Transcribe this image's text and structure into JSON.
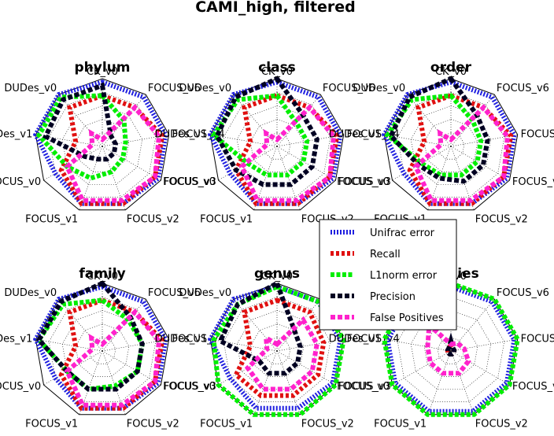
{
  "title": "CAMI_high, filtered",
  "chart_data": {
    "type": "radar",
    "axes": [
      "CK_v0",
      "FOCUS_v6",
      "FOCUS_v4",
      "FOCUS_v3",
      "FOCUS_v2",
      "FOCUS_v1",
      "FOCUS_v0",
      "DUDes_v1",
      "DUDes_v0"
    ],
    "grid": true,
    "legend_position": "center-right",
    "series_styles": [
      {
        "name": "Unifrac error",
        "color": "#2020e0",
        "dash": "2,2"
      },
      {
        "name": "Recall",
        "color": "#e01010",
        "dash": "4,3"
      },
      {
        "name": "L1norm error",
        "color": "#00ee00",
        "dash": "5,2.5"
      },
      {
        "name": "Precision",
        "color": "#000022",
        "dash": "6,3"
      },
      {
        "name": "False Positives",
        "color": "#ff22cc",
        "dash": "6,3"
      }
    ],
    "panels": [
      {
        "title": "phylum",
        "series": [
          {
            "name": "Unifrac error",
            "values": [
              0.95,
              0.95,
              0.95,
              0.95,
              0.9,
              0.9,
              0.8,
              1.0,
              1.0
            ]
          },
          {
            "name": "Recall",
            "values": [
              0.75,
              0.75,
              0.9,
              0.9,
              0.9,
              0.9,
              0.7,
              0.4,
              0.75
            ]
          },
          {
            "name": "L1norm error",
            "values": [
              0.75,
              0.5,
              0.35,
              0.35,
              0.4,
              0.5,
              0.6,
              0.95,
              0.95
            ]
          },
          {
            "name": "Precision",
            "values": [
              0.9,
              0.2,
              0.2,
              0.2,
              0.2,
              0.2,
              0.3,
              0.85,
              0.9
            ]
          },
          {
            "name": "False Positives",
            "values": [
              0.1,
              0.75,
              0.85,
              0.9,
              0.85,
              0.85,
              0.6,
              0.15,
              0.25
            ]
          }
        ]
      },
      {
        "title": "class",
        "series": [
          {
            "name": "Unifrac error",
            "values": [
              0.95,
              0.95,
              0.95,
              0.95,
              0.9,
              0.9,
              0.8,
              1.0,
              1.0
            ]
          },
          {
            "name": "Recall",
            "values": [
              0.75,
              0.75,
              0.9,
              0.9,
              0.9,
              0.9,
              0.7,
              0.4,
              0.75
            ]
          },
          {
            "name": "L1norm error",
            "values": [
              0.75,
              0.45,
              0.45,
              0.45,
              0.45,
              0.45,
              0.5,
              0.95,
              0.9
            ]
          },
          {
            "name": "Precision",
            "values": [
              1.0,
              0.6,
              0.6,
              0.6,
              0.6,
              0.6,
              0.7,
              0.9,
              0.95
            ]
          },
          {
            "name": "False Positives",
            "values": [
              0.1,
              0.75,
              0.85,
              0.9,
              0.85,
              0.85,
              0.6,
              0.15,
              0.25
            ]
          }
        ]
      },
      {
        "title": "order",
        "series": [
          {
            "name": "Unifrac error",
            "values": [
              0.95,
              0.95,
              0.95,
              0.95,
              0.9,
              0.9,
              0.8,
              1.0,
              1.0
            ]
          },
          {
            "name": "Recall",
            "values": [
              0.75,
              0.75,
              0.9,
              0.9,
              0.9,
              0.9,
              0.7,
              0.4,
              0.75
            ]
          },
          {
            "name": "L1norm error",
            "values": [
              0.75,
              0.5,
              0.45,
              0.45,
              0.45,
              0.45,
              0.5,
              0.95,
              0.9
            ]
          },
          {
            "name": "Precision",
            "values": [
              1.0,
              0.6,
              0.55,
              0.55,
              0.55,
              0.5,
              0.55,
              0.9,
              0.95
            ]
          },
          {
            "name": "False Positives",
            "values": [
              0.1,
              0.75,
              0.85,
              0.9,
              0.85,
              0.85,
              0.6,
              0.15,
              0.25
            ]
          }
        ]
      },
      {
        "title": "family",
        "series": [
          {
            "name": "Unifrac error",
            "values": [
              0.95,
              0.95,
              0.95,
              0.95,
              0.9,
              0.9,
              0.8,
              1.0,
              1.0
            ]
          },
          {
            "name": "Recall",
            "values": [
              0.75,
              0.75,
              0.9,
              0.9,
              0.9,
              0.9,
              0.7,
              0.4,
              0.75
            ]
          },
          {
            "name": "L1norm error",
            "values": [
              0.75,
              0.6,
              0.6,
              0.6,
              0.55,
              0.6,
              0.6,
              0.95,
              0.9
            ]
          },
          {
            "name": "Precision",
            "values": [
              1.0,
              0.65,
              0.6,
              0.6,
              0.6,
              0.6,
              0.6,
              0.95,
              0.95
            ]
          },
          {
            "name": "False Positives",
            "values": [
              0.1,
              0.75,
              0.85,
              0.9,
              0.85,
              0.85,
              0.6,
              0.15,
              0.25
            ]
          }
        ]
      },
      {
        "title": "genus",
        "series": [
          {
            "name": "Unifrac error",
            "values": [
              0.95,
              0.95,
              0.95,
              0.95,
              0.9,
              0.9,
              0.8,
              1.0,
              1.0
            ]
          },
          {
            "name": "Recall",
            "values": [
              0.75,
              0.75,
              0.7,
              0.7,
              0.7,
              0.7,
              0.7,
              0.4,
              0.75
            ]
          },
          {
            "name": "L1norm error",
            "values": [
              0.95,
              0.95,
              1.0,
              1.0,
              1.0,
              1.0,
              1.0,
              0.95,
              0.9
            ]
          },
          {
            "name": "Precision",
            "values": [
              1.0,
              0.4,
              0.35,
              0.35,
              0.35,
              0.35,
              0.3,
              0.85,
              0.9
            ]
          },
          {
            "name": "False Positives",
            "values": [
              0.1,
              0.6,
              0.6,
              0.6,
              0.6,
              0.6,
              0.5,
              0.15,
              0.25
            ]
          }
        ]
      },
      {
        "title": "species",
        "series": [
          {
            "name": "Unifrac error",
            "values": [
              0.95,
              0.95,
              0.95,
              0.95,
              0.95,
              0.95,
              0.95,
              0.95,
              0.95
            ]
          },
          {
            "name": "Recall",
            "values": [
              0.1,
              0.05,
              0.05,
              0.05,
              0.05,
              0.05,
              0.05,
              0.05,
              0.05
            ]
          },
          {
            "name": "L1norm error",
            "values": [
              1.0,
              1.0,
              1.0,
              1.0,
              1.0,
              1.0,
              1.0,
              1.0,
              1.0
            ]
          },
          {
            "name": "Precision",
            "values": [
              0.15,
              0.05,
              0.05,
              0.05,
              0.05,
              0.05,
              0.05,
              0.05,
              0.05
            ]
          },
          {
            "name": "False Positives",
            "values": [
              0.1,
              0.15,
              0.2,
              0.3,
              0.35,
              0.35,
              0.35,
              0.35,
              0.5
            ]
          }
        ]
      }
    ]
  }
}
